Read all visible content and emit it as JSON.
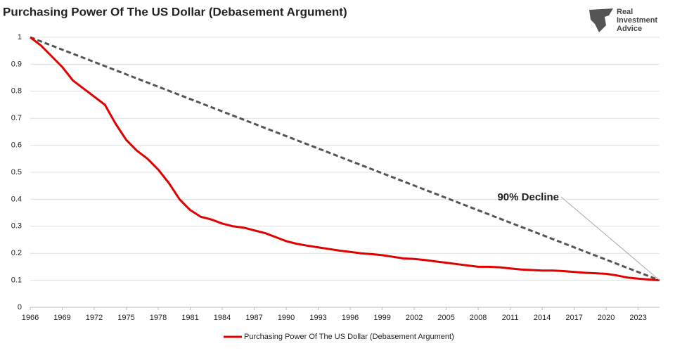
{
  "chart_data": {
    "type": "line",
    "title": "Purchasing Power Of The US Dollar (Debasement Argument)",
    "logo": [
      "Real",
      "Investment",
      "Advice"
    ],
    "annotation": "90% Decline",
    "x": [
      1966,
      1967,
      1968,
      1969,
      1970,
      1971,
      1972,
      1973,
      1974,
      1975,
      1976,
      1977,
      1978,
      1979,
      1980,
      1981,
      1982,
      1983,
      1984,
      1985,
      1986,
      1987,
      1988,
      1989,
      1990,
      1991,
      1992,
      1993,
      1994,
      1995,
      1996,
      1997,
      1998,
      1999,
      2000,
      2001,
      2002,
      2003,
      2004,
      2005,
      2006,
      2007,
      2008,
      2009,
      2010,
      2011,
      2012,
      2013,
      2014,
      2015,
      2016,
      2017,
      2018,
      2019,
      2020,
      2021,
      2022,
      2023,
      2024,
      2025
    ],
    "series": [
      {
        "name": "Purchasing Power Of The US Dollar (Debasement Argument)",
        "color": "#e00000",
        "values": [
          1.0,
          0.97,
          0.93,
          0.89,
          0.84,
          0.81,
          0.78,
          0.75,
          0.68,
          0.62,
          0.58,
          0.55,
          0.51,
          0.46,
          0.4,
          0.36,
          0.335,
          0.325,
          0.31,
          0.3,
          0.295,
          0.285,
          0.275,
          0.26,
          0.245,
          0.235,
          0.228,
          0.222,
          0.216,
          0.21,
          0.205,
          0.2,
          0.197,
          0.193,
          0.187,
          0.181,
          0.179,
          0.175,
          0.17,
          0.165,
          0.16,
          0.155,
          0.15,
          0.15,
          0.148,
          0.144,
          0.14,
          0.138,
          0.136,
          0.136,
          0.134,
          0.131,
          0.128,
          0.126,
          0.124,
          0.118,
          0.11,
          0.106,
          0.103,
          0.1
        ]
      }
    ],
    "trend": {
      "color": "#555555",
      "x": [
        1966,
        2025
      ],
      "values": [
        1,
        0.1
      ]
    },
    "xlim": [
      1966,
      2025
    ],
    "xticks": [
      1966,
      1969,
      1972,
      1975,
      1978,
      1981,
      1984,
      1987,
      1990,
      1993,
      1996,
      1999,
      2002,
      2005,
      2008,
      2011,
      2014,
      2017,
      2020,
      2023
    ],
    "ylim": [
      0,
      1
    ],
    "yticks": [
      0,
      0.1,
      0.2,
      0.3,
      0.4,
      0.5,
      0.6,
      0.7,
      0.8,
      0.9,
      1
    ],
    "grid": true,
    "legend": "bottom"
  }
}
